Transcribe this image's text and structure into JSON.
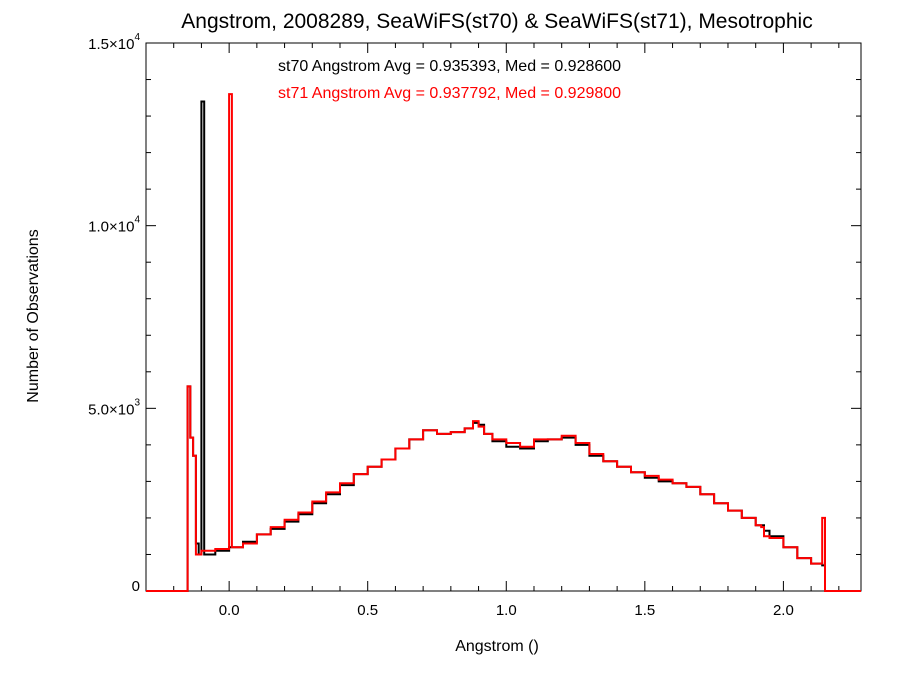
{
  "chart_data": {
    "type": "line",
    "step": true,
    "title": "Angstrom, 2008289, SeaWiFS(st70) & SeaWiFS(st71), Mesotrophic",
    "xlabel": "Angstrom ()",
    "ylabel": "Number of Observations",
    "xlim": [
      -0.3,
      2.28
    ],
    "ylim": [
      0,
      15000
    ],
    "xticks": [
      0.0,
      0.5,
      1.0,
      1.5,
      2.0
    ],
    "xtick_labels": [
      "0.0",
      "0.5",
      "1.0",
      "1.5",
      "2.0"
    ],
    "yticks": [
      0,
      5000,
      10000,
      15000
    ],
    "ytick_labels": [
      {
        "mant": "0",
        "exp": ""
      },
      {
        "mant": "5.0×10",
        "exp": "3"
      },
      {
        "mant": "1.0×10",
        "exp": "4"
      },
      {
        "mant": "1.5×10",
        "exp": "4"
      }
    ],
    "annotations": [
      {
        "text": "st70 Angstrom Avg = 0.935393, Med = 0.928600",
        "color": "#000000"
      },
      {
        "text": "st71 Angstrom Avg = 0.937792, Med = 0.929800",
        "color": "#ff0000"
      }
    ],
    "series": [
      {
        "color": "#000000",
        "points": [
          [
            -0.3,
            0
          ],
          [
            -0.16,
            0
          ],
          [
            -0.15,
            5600
          ],
          [
            -0.14,
            4200
          ],
          [
            -0.13,
            3700
          ],
          [
            -0.12,
            1300
          ],
          [
            -0.11,
            1000
          ],
          [
            -0.1,
            13400
          ],
          [
            -0.09,
            1000
          ],
          [
            -0.05,
            1100
          ],
          [
            0.0,
            1200
          ],
          [
            0.05,
            1350
          ],
          [
            0.1,
            1550
          ],
          [
            0.15,
            1700
          ],
          [
            0.2,
            1900
          ],
          [
            0.25,
            2100
          ],
          [
            0.3,
            2400
          ],
          [
            0.35,
            2650
          ],
          [
            0.4,
            2900
          ],
          [
            0.45,
            3200
          ],
          [
            0.5,
            3400
          ],
          [
            0.55,
            3600
          ],
          [
            0.6,
            3900
          ],
          [
            0.65,
            4150
          ],
          [
            0.7,
            4400
          ],
          [
            0.75,
            4300
          ],
          [
            0.8,
            4350
          ],
          [
            0.85,
            4450
          ],
          [
            0.88,
            4600
          ],
          [
            0.9,
            4550
          ],
          [
            0.92,
            4300
          ],
          [
            0.95,
            4100
          ],
          [
            1.0,
            3950
          ],
          [
            1.05,
            3900
          ],
          [
            1.1,
            4100
          ],
          [
            1.15,
            4150
          ],
          [
            1.2,
            4200
          ],
          [
            1.25,
            4000
          ],
          [
            1.3,
            3700
          ],
          [
            1.35,
            3550
          ],
          [
            1.4,
            3400
          ],
          [
            1.45,
            3250
          ],
          [
            1.5,
            3100
          ],
          [
            1.55,
            3000
          ],
          [
            1.6,
            2950
          ],
          [
            1.65,
            2850
          ],
          [
            1.7,
            2650
          ],
          [
            1.75,
            2400
          ],
          [
            1.8,
            2200
          ],
          [
            1.85,
            2000
          ],
          [
            1.9,
            1800
          ],
          [
            1.93,
            1650
          ],
          [
            1.95,
            1500
          ],
          [
            2.0,
            1200
          ],
          [
            2.05,
            900
          ],
          [
            2.1,
            750
          ],
          [
            2.14,
            700
          ],
          [
            2.15,
            0
          ],
          [
            2.28,
            0
          ]
        ]
      },
      {
        "color": "#ff0000",
        "points": [
          [
            -0.3,
            0
          ],
          [
            -0.16,
            0
          ],
          [
            -0.15,
            5600
          ],
          [
            -0.14,
            4200
          ],
          [
            -0.13,
            3700
          ],
          [
            -0.12,
            1000
          ],
          [
            -0.1,
            1100
          ],
          [
            -0.05,
            1150
          ],
          [
            0.0,
            13600
          ],
          [
            0.01,
            1200
          ],
          [
            0.05,
            1300
          ],
          [
            0.1,
            1550
          ],
          [
            0.15,
            1750
          ],
          [
            0.2,
            1950
          ],
          [
            0.25,
            2150
          ],
          [
            0.3,
            2450
          ],
          [
            0.35,
            2700
          ],
          [
            0.4,
            2950
          ],
          [
            0.45,
            3200
          ],
          [
            0.5,
            3400
          ],
          [
            0.55,
            3600
          ],
          [
            0.6,
            3900
          ],
          [
            0.65,
            4150
          ],
          [
            0.7,
            4400
          ],
          [
            0.75,
            4300
          ],
          [
            0.8,
            4350
          ],
          [
            0.85,
            4450
          ],
          [
            0.88,
            4650
          ],
          [
            0.9,
            4500
          ],
          [
            0.92,
            4300
          ],
          [
            0.95,
            4150
          ],
          [
            1.0,
            4050
          ],
          [
            1.05,
            3950
          ],
          [
            1.1,
            4150
          ],
          [
            1.15,
            4150
          ],
          [
            1.2,
            4250
          ],
          [
            1.25,
            4050
          ],
          [
            1.3,
            3750
          ],
          [
            1.35,
            3550
          ],
          [
            1.4,
            3400
          ],
          [
            1.45,
            3250
          ],
          [
            1.5,
            3150
          ],
          [
            1.55,
            3050
          ],
          [
            1.6,
            2950
          ],
          [
            1.65,
            2850
          ],
          [
            1.7,
            2650
          ],
          [
            1.75,
            2400
          ],
          [
            1.8,
            2200
          ],
          [
            1.85,
            2000
          ],
          [
            1.9,
            1800
          ],
          [
            1.92,
            1750
          ],
          [
            1.93,
            1500
          ],
          [
            1.95,
            1450
          ],
          [
            2.0,
            1200
          ],
          [
            2.05,
            900
          ],
          [
            2.1,
            750
          ],
          [
            2.14,
            2000
          ],
          [
            2.15,
            0
          ],
          [
            2.28,
            0
          ]
        ]
      }
    ]
  }
}
